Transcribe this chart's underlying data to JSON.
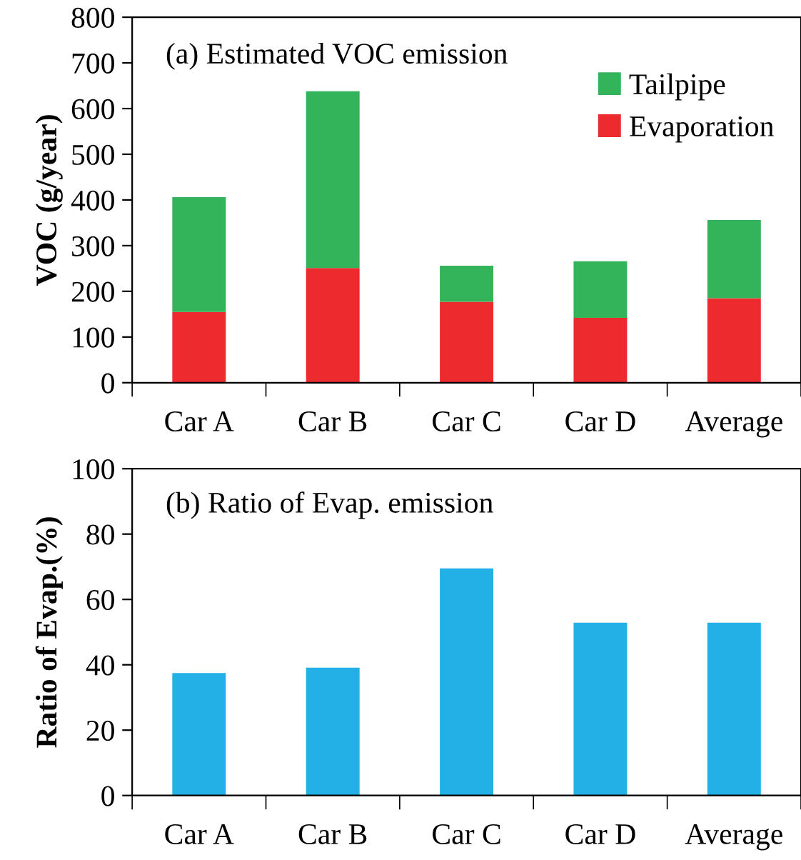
{
  "chart_data": [
    {
      "type": "bar",
      "title": "(a) Estimated VOC emission",
      "ylabel": "VOC (g/year)",
      "categories": [
        "Car A",
        "Car B",
        "Car C",
        "Car D",
        "Average"
      ],
      "stacked": true,
      "legend": "top right",
      "grid": false,
      "ylim": [
        0,
        800
      ],
      "yticks": [
        0,
        100,
        200,
        300,
        400,
        500,
        600,
        700,
        800
      ],
      "series": [
        {
          "name": "Evaporation",
          "color": "#ed2a2e",
          "values": [
            155,
            251,
            177,
            142,
            185
          ]
        },
        {
          "name": "Tailpipe",
          "color": "#33b35a",
          "values": [
            251,
            387,
            79,
            124,
            171
          ]
        }
      ]
    },
    {
      "type": "bar",
      "title": "(b) Ratio of Evap. emission",
      "ylabel": "Ratio of Evap.(%)",
      "categories": [
        "Car A",
        "Car B",
        "Car C",
        "Car D",
        "Average"
      ],
      "grid": false,
      "ylim": [
        0,
        100
      ],
      "yticks": [
        0,
        20,
        40,
        60,
        80,
        100
      ],
      "series": [
        {
          "color": "#23b0e6",
          "values": [
            37.5,
            39.1,
            69.5,
            52.9,
            52.9
          ]
        }
      ]
    }
  ]
}
